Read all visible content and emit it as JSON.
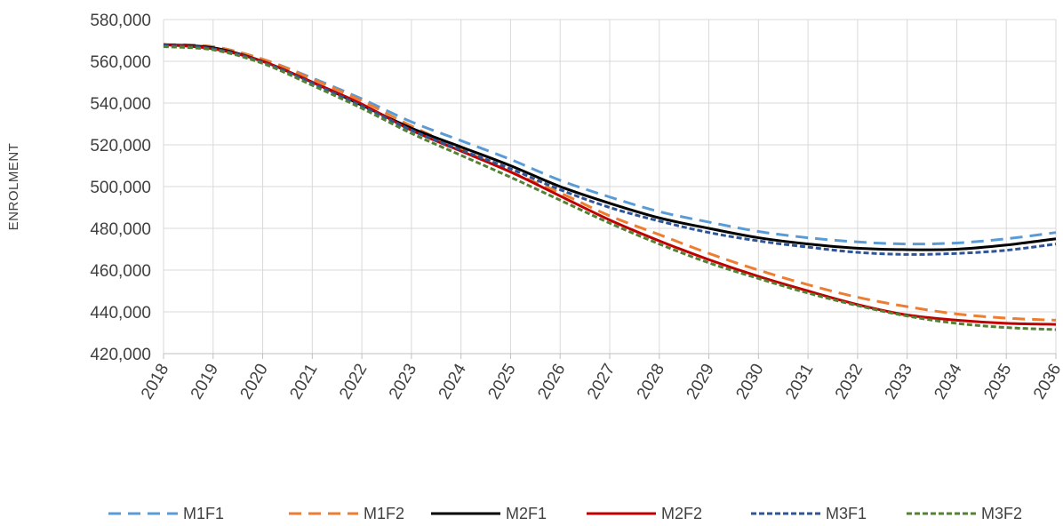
{
  "chart_data": {
    "type": "line",
    "title": "",
    "xlabel": "",
    "ylabel": "ENROLMENT",
    "x": [
      "2018",
      "2019",
      "2020",
      "2021",
      "2022",
      "2023",
      "2024",
      "2025",
      "2026",
      "2027",
      "2028",
      "2029",
      "2030",
      "2031",
      "2032",
      "2033",
      "2034",
      "2035",
      "2036"
    ],
    "ylim": [
      420000,
      580000
    ],
    "yticks": [
      420000,
      440000,
      460000,
      480000,
      500000,
      520000,
      540000,
      560000,
      580000
    ],
    "ytick_labels": [
      "420,000",
      "440,000",
      "460,000",
      "480,000",
      "500,000",
      "520,000",
      "540,000",
      "560,000",
      "580,000"
    ],
    "grid": true,
    "legend_position": "bottom",
    "series": [
      {
        "name": "M1F1",
        "color": "#5b9bd5",
        "dash": "long-dash",
        "values": [
          568000,
          567000,
          561000,
          552000,
          542000,
          531000,
          522000,
          513000,
          503000,
          495000,
          488000,
          483000,
          478500,
          475500,
          473500,
          472500,
          473000,
          475000,
          478000
        ]
      },
      {
        "name": "M1F2",
        "color": "#ed7d31",
        "dash": "long-dash",
        "values": [
          568000,
          567000,
          561000,
          551500,
          541000,
          529000,
          518000,
          507000,
          497000,
          486000,
          477000,
          468000,
          460000,
          453000,
          447000,
          442500,
          439000,
          437000,
          436000
        ]
      },
      {
        "name": "M2F1",
        "color": "#000000",
        "dash": "solid",
        "values": [
          568000,
          566500,
          560000,
          550000,
          539000,
          528000,
          519000,
          510000,
          500000,
          492000,
          485000,
          480000,
          475500,
          472500,
          470500,
          469800,
          470000,
          472000,
          475000
        ]
      },
      {
        "name": "M2F2",
        "color": "#c00000",
        "dash": "solid",
        "values": [
          568000,
          566000,
          560000,
          550000,
          539500,
          527000,
          517000,
          507000,
          495500,
          484000,
          474000,
          465000,
          457000,
          450000,
          443500,
          438500,
          436000,
          434500,
          434000
        ]
      },
      {
        "name": "M3F1",
        "color": "#2f5597",
        "dash": "short-dash",
        "values": [
          567500,
          566000,
          559500,
          549500,
          538500,
          527000,
          517500,
          508500,
          498500,
          490000,
          483500,
          478000,
          474000,
          471000,
          468500,
          467500,
          468000,
          469500,
          472500
        ]
      },
      {
        "name": "M3F2",
        "color": "#548235",
        "dash": "short-dash",
        "values": [
          567000,
          565500,
          559000,
          548500,
          537500,
          525500,
          515000,
          504500,
          493500,
          482500,
          472500,
          463500,
          456000,
          449000,
          443000,
          438000,
          434500,
          432500,
          431500
        ]
      }
    ]
  }
}
